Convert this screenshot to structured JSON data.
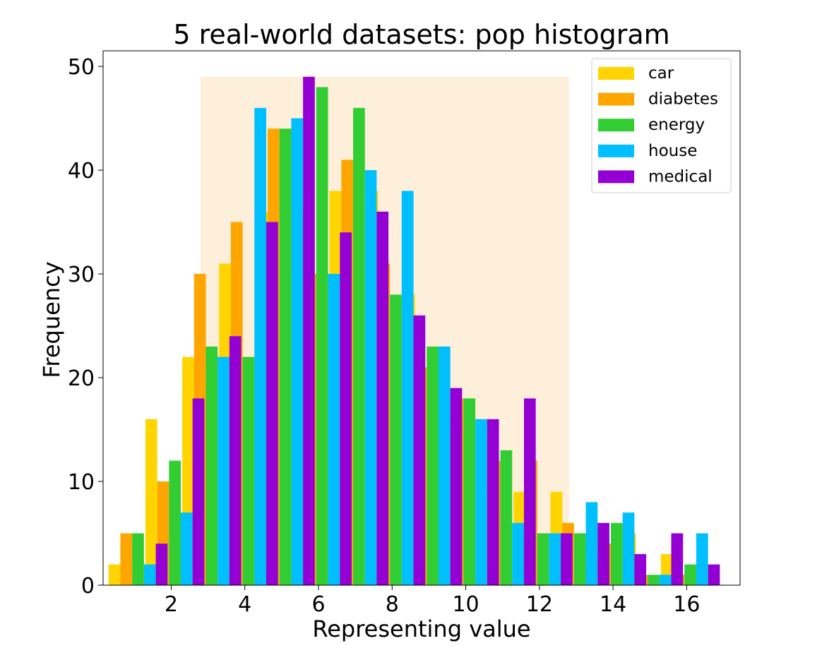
{
  "chart_data": {
    "type": "bar",
    "title": "5 real-world datasets: pop histogram",
    "xlabel": "Representing value",
    "ylabel": "Frequency",
    "xlim": [
      0.15,
      17.45
    ],
    "ylim": [
      0,
      51.5
    ],
    "x_ticks": [
      "2",
      "4",
      "6",
      "8",
      "10",
      "12",
      "14",
      "16"
    ],
    "y_ticks": [
      "0",
      "10",
      "20",
      "30",
      "40",
      "50"
    ],
    "grid": false,
    "legend_position": "top-right",
    "categories": [
      1,
      2,
      3,
      4,
      5,
      6,
      7,
      8,
      9,
      10,
      11,
      12,
      13,
      14,
      15,
      16
    ],
    "highlight_band": {
      "x_range": [
        2.8,
        12.8
      ],
      "y_max": 49,
      "color": "#fdefd9"
    },
    "series": [
      {
        "name": "car",
        "color": "#ffd400",
        "values": [
          2,
          16,
          22,
          31,
          36,
          36,
          38,
          38,
          28,
          16,
          9,
          9,
          9,
          3,
          5,
          3
        ]
      },
      {
        "name": "diabetes",
        "color": "#ffa500",
        "values": [
          5,
          10,
          30,
          35,
          44,
          30,
          41,
          31,
          21,
          18,
          12,
          12,
          6,
          4,
          1,
          1
        ]
      },
      {
        "name": "energy",
        "color": "#32cd32",
        "values": [
          5,
          12,
          23,
          22,
          44,
          48,
          46,
          28,
          23,
          18,
          13,
          5,
          5,
          6,
          1,
          2
        ]
      },
      {
        "name": "house",
        "color": "#00bfff",
        "values": [
          2,
          7,
          22,
          46,
          45,
          30,
          40,
          38,
          23,
          16,
          6,
          5,
          8,
          7,
          1,
          5
        ]
      },
      {
        "name": "medical",
        "color": "#9400d3",
        "values": [
          4,
          18,
          24,
          35,
          49,
          34,
          36,
          26,
          19,
          16,
          18,
          5,
          6,
          3,
          5,
          2
        ]
      }
    ]
  }
}
